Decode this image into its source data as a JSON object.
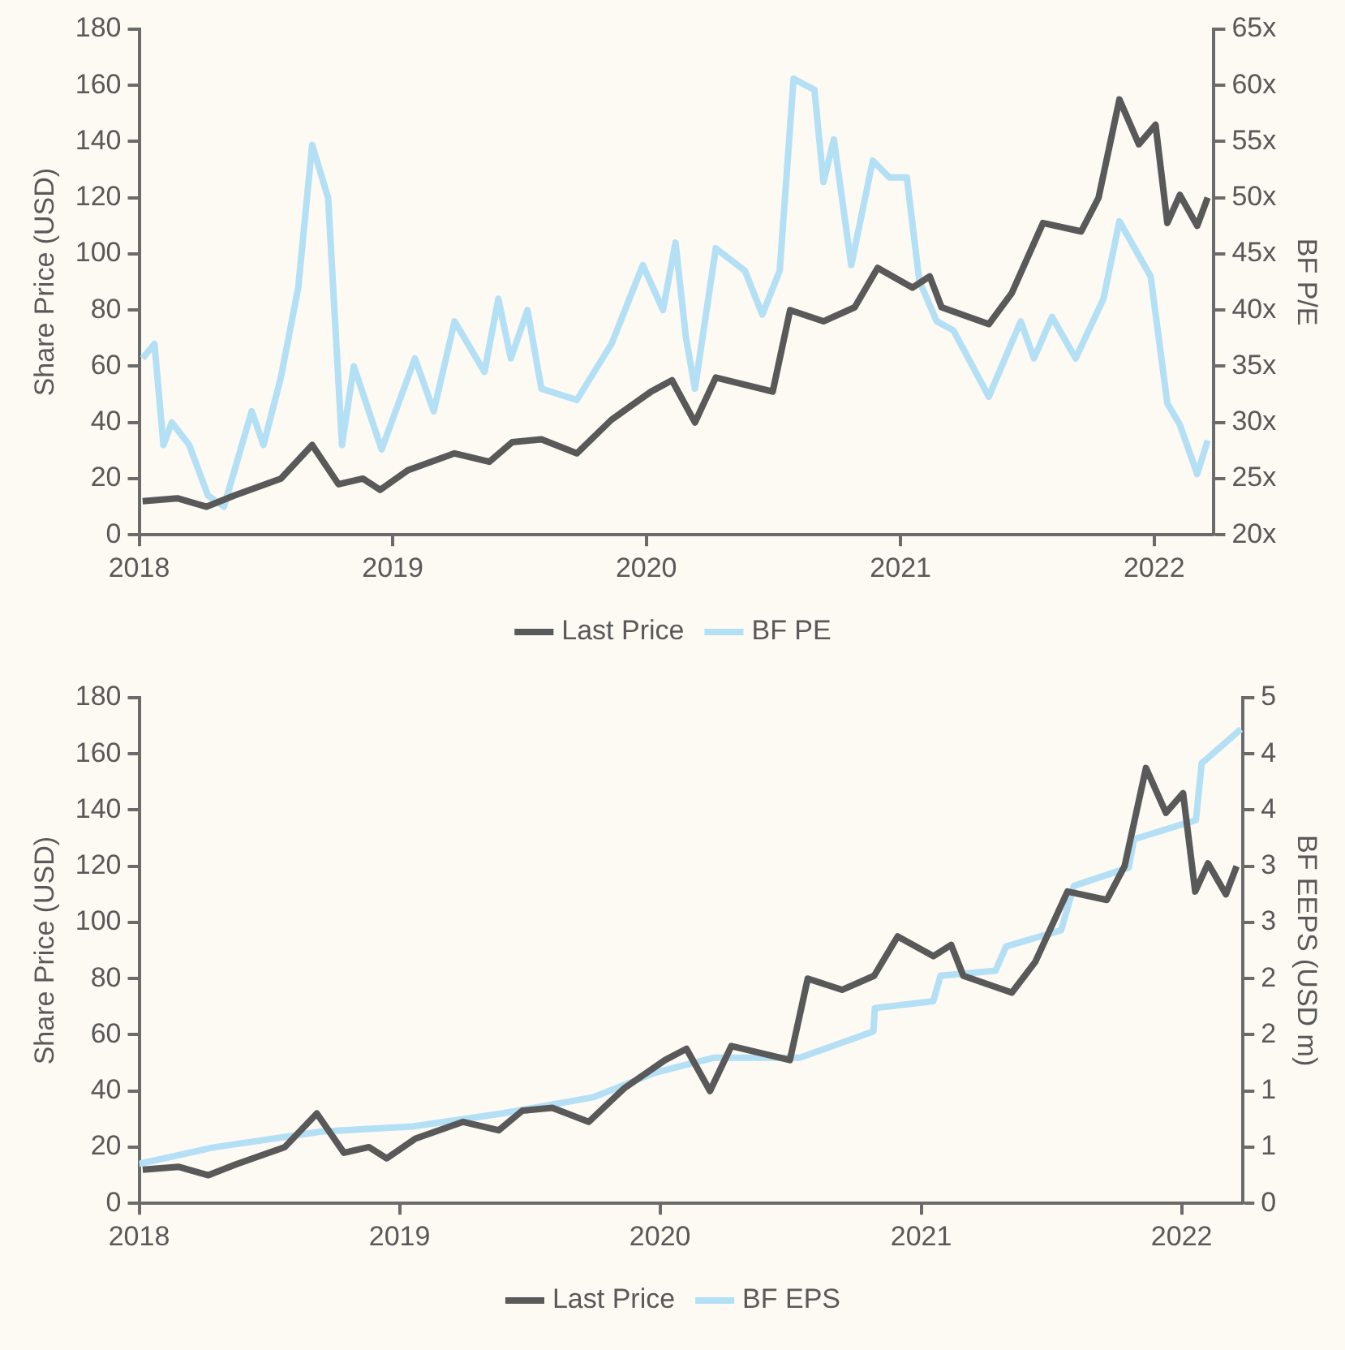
{
  "chart_data": [
    {
      "type": "line",
      "ylabel": "Share Price (USD)",
      "y2label": "BF P/E",
      "xlim": [
        "2018-01-01",
        "2022-03-28"
      ],
      "xticks": [
        "2018",
        "2019",
        "2020",
        "2021",
        "2022"
      ],
      "ylim": [
        0,
        180
      ],
      "yticks": [
        0,
        20,
        40,
        60,
        80,
        100,
        120,
        140,
        160,
        180
      ],
      "y2lim": [
        20,
        65
      ],
      "y2ticks": [
        {
          "value": 20,
          "label": "20x"
        },
        {
          "value": 25,
          "label": "25x"
        },
        {
          "value": 30,
          "label": "30x"
        },
        {
          "value": 35,
          "label": "35x"
        },
        {
          "value": 40,
          "label": "40x"
        },
        {
          "value": 45,
          "label": "45x"
        },
        {
          "value": 50,
          "label": "50x"
        },
        {
          "value": 55,
          "label": "55x"
        },
        {
          "value": 60,
          "label": "60x"
        },
        {
          "value": 65,
          "label": "65x"
        }
      ],
      "grid": false,
      "legend": "bottom",
      "series": [
        {
          "name": "Last Price",
          "color": "#595959",
          "x": [
            "2018-01-06",
            "2018-02-25",
            "2018-04-08",
            "2018-05-18",
            "2018-07-24",
            "2018-09-07",
            "2018-10-15",
            "2018-11-19",
            "2018-12-14",
            "2019-01-23",
            "2019-03-31",
            "2019-05-20",
            "2019-06-22",
            "2019-08-03",
            "2019-09-23",
            "2019-11-12",
            "2020-01-08",
            "2020-02-07",
            "2020-03-11",
            "2020-04-10",
            "2020-07-01",
            "2020-07-26",
            "2020-09-12",
            "2020-10-27",
            "2020-11-29",
            "2021-01-18",
            "2021-02-12",
            "2021-03-01",
            "2021-05-08",
            "2021-06-10",
            "2021-07-25",
            "2021-09-18",
            "2021-10-13",
            "2021-11-12",
            "2021-12-10",
            "2022-01-03",
            "2022-01-20",
            "2022-02-07",
            "2022-03-04",
            "2022-03-19"
          ],
          "values": [
            12,
            13,
            10,
            14,
            20,
            32,
            18,
            20,
            16,
            23,
            29,
            26,
            33,
            34,
            29,
            41,
            51,
            55,
            40,
            56,
            51,
            80,
            76,
            81,
            95,
            88,
            92,
            81,
            75,
            86,
            111,
            108,
            120,
            155,
            139,
            146,
            111,
            121,
            110,
            120
          ]
        },
        {
          "name": "BF PE",
          "color": "#b4e0f5",
          "axis": "y2",
          "x": [
            "2018-01-06",
            "2018-01-23",
            "2018-02-05",
            "2018-02-17",
            "2018-03-14",
            "2018-04-10",
            "2018-05-03",
            "2018-06-12",
            "2018-06-29",
            "2018-07-24",
            "2018-08-18",
            "2018-09-07",
            "2018-09-30",
            "2018-10-20",
            "2018-11-06",
            "2018-12-16",
            "2019-02-02",
            "2019-03-01",
            "2019-03-31",
            "2019-05-13",
            "2019-06-02",
            "2019-06-20",
            "2019-07-14",
            "2019-08-03",
            "2019-09-23",
            "2019-11-12",
            "2019-12-27",
            "2020-01-25",
            "2020-02-12",
            "2020-02-27",
            "2020-03-11",
            "2020-04-10",
            "2020-05-22",
            "2020-06-16",
            "2020-07-11",
            "2020-07-31",
            "2020-08-30",
            "2020-09-12",
            "2020-09-27",
            "2020-10-22",
            "2020-11-22",
            "2020-12-16",
            "2021-01-10",
            "2021-01-28",
            "2021-02-22",
            "2021-03-18",
            "2021-05-08",
            "2021-06-23",
            "2021-07-12",
            "2021-08-07",
            "2021-09-10",
            "2021-10-20",
            "2021-11-12",
            "2021-12-27",
            "2022-01-20",
            "2022-02-07",
            "2022-03-04",
            "2022-03-19"
          ],
          "values": [
            35.7,
            37,
            28,
            30,
            28,
            23.5,
            22.5,
            31,
            28,
            34,
            42,
            54.7,
            50,
            28,
            35,
            27.6,
            35.7,
            31,
            39,
            34.5,
            41,
            35.7,
            40,
            33,
            32,
            37,
            44,
            40,
            46,
            37.6,
            33,
            45.5,
            43.5,
            39.6,
            43.5,
            60.6,
            59.6,
            51.4,
            55.2,
            44,
            53.3,
            51.8,
            51.8,
            42.6,
            39,
            38.2,
            32.3,
            39,
            35.7,
            39.4,
            35.7,
            41,
            47.9,
            43,
            31.7,
            29.8,
            25.4,
            28.4
          ]
        }
      ]
    },
    {
      "type": "line",
      "ylabel": "Share Price (USD)",
      "y2label": "BF EEPS (USD m)",
      "xlim": [
        "2018-01-01",
        "2022-03-28"
      ],
      "xticks": [
        "2018",
        "2019",
        "2020",
        "2021",
        "2022"
      ],
      "ylim": [
        0,
        180
      ],
      "yticks": [
        0,
        20,
        40,
        60,
        80,
        100,
        120,
        140,
        160,
        180
      ],
      "y2lim": [
        0,
        5
      ],
      "y2ticks": [
        {
          "value": 0,
          "label": "0"
        },
        {
          "value": 0.5556,
          "label": "1"
        },
        {
          "value": 1.1111,
          "label": "1"
        },
        {
          "value": 1.6667,
          "label": "2"
        },
        {
          "value": 2.2222,
          "label": "2"
        },
        {
          "value": 2.7778,
          "label": "3"
        },
        {
          "value": 3.3333,
          "label": "3"
        },
        {
          "value": 3.8889,
          "label": "4"
        },
        {
          "value": 4.4444,
          "label": "4"
        },
        {
          "value": 5,
          "label": "5"
        }
      ],
      "grid": false,
      "legend": "bottom",
      "series": [
        {
          "name": "Last Price",
          "color": "#595959",
          "x": [
            "2018-01-06",
            "2018-02-25",
            "2018-04-08",
            "2018-05-18",
            "2018-07-24",
            "2018-09-07",
            "2018-10-15",
            "2018-11-19",
            "2018-12-14",
            "2019-01-23",
            "2019-03-31",
            "2019-05-20",
            "2019-06-22",
            "2019-08-03",
            "2019-09-23",
            "2019-11-12",
            "2020-01-08",
            "2020-02-07",
            "2020-03-11",
            "2020-04-10",
            "2020-07-01",
            "2020-07-26",
            "2020-09-12",
            "2020-10-27",
            "2020-11-29",
            "2021-01-18",
            "2021-02-12",
            "2021-03-01",
            "2021-05-08",
            "2021-06-10",
            "2021-07-25",
            "2021-09-18",
            "2021-10-13",
            "2021-11-12",
            "2021-12-10",
            "2022-01-03",
            "2022-01-20",
            "2022-02-07",
            "2022-03-04",
            "2022-03-19"
          ],
          "values": [
            12,
            13,
            10,
            14,
            20,
            32,
            18,
            20,
            16,
            23,
            29,
            26,
            33,
            34,
            29,
            41,
            51,
            55,
            40,
            56,
            51,
            80,
            76,
            81,
            95,
            88,
            92,
            81,
            75,
            86,
            111,
            108,
            120,
            155,
            139,
            146,
            111,
            121,
            110,
            120
          ]
        },
        {
          "name": "BF EPS",
          "color": "#b4e0f5",
          "axis": "y2",
          "x": [
            "2018-01-01",
            "2018-04-13",
            "2018-09-13",
            "2019-01-19",
            "2019-05-26",
            "2019-09-30",
            "2019-12-24",
            "2020-03-17",
            "2020-07-15",
            "2020-10-26",
            "2020-10-28",
            "2021-01-18",
            "2021-01-28",
            "2021-04-15",
            "2021-04-30",
            "2021-07-16",
            "2021-08-03",
            "2021-10-19",
            "2021-10-26",
            "2022-01-21",
            "2022-01-29",
            "2022-03-25"
          ],
          "values": [
            0.39,
            0.55,
            0.71,
            0.76,
            0.89,
            1.05,
            1.29,
            1.44,
            1.44,
            1.7,
            1.93,
            2.0,
            2.25,
            2.3,
            2.54,
            2.7,
            3.14,
            3.32,
            3.6,
            3.79,
            4.35,
            4.69
          ]
        }
      ]
    }
  ]
}
